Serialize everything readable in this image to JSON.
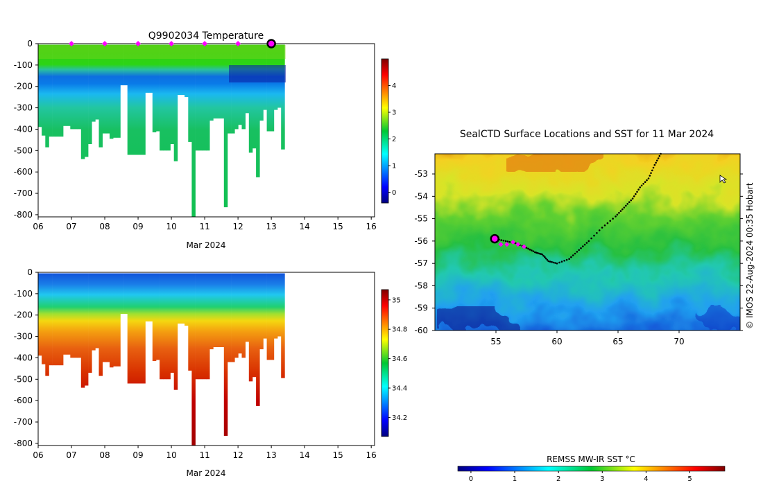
{
  "chart_data": [
    {
      "type": "heatmap",
      "title": "Q9902034  Temperature",
      "xlabel": "Mar 2024",
      "ylabel": "",
      "x_ticks": [
        "06",
        "07",
        "08",
        "09",
        "10",
        "11",
        "12",
        "13",
        "14",
        "15",
        "16"
      ],
      "xlim": [
        6,
        16.1
      ],
      "y_ticks": [
        "0",
        "-100",
        "-200",
        "-300",
        "-400",
        "-500",
        "-600",
        "-700",
        "-800"
      ],
      "ylim": [
        -810,
        0
      ],
      "colorbar": {
        "ticks": [
          "0",
          "1",
          "2",
          "3",
          "4"
        ],
        "range": [
          -0.4,
          5
        ],
        "colormap": "jet"
      },
      "surface_marker_days": [
        7,
        8,
        9,
        10,
        11,
        12
      ],
      "current_marker_day": 13,
      "profiles": {
        "start_day": 6.0,
        "end_day": 13.4,
        "max_depth_m": [
          390,
          430,
          485,
          435,
          435,
          435,
          435,
          385,
          385,
          400,
          400,
          400,
          540,
          530,
          470,
          365,
          355,
          485,
          420,
          420,
          445,
          440,
          440,
          195,
          195,
          520,
          520,
          520,
          520,
          520,
          230,
          230,
          415,
          410,
          500,
          500,
          500,
          470,
          550,
          240,
          240,
          250,
          460,
          810,
          500,
          500,
          500,
          500,
          360,
          350,
          350,
          350,
          765,
          420,
          420,
          400,
          380,
          400,
          325,
          510,
          490,
          625,
          360,
          310,
          410,
          410,
          310,
          300,
          495
        ]
      }
    },
    {
      "type": "heatmap",
      "title": "",
      "xlabel": "Mar 2024",
      "ylabel": "",
      "x_ticks": [
        "06",
        "07",
        "08",
        "09",
        "10",
        "11",
        "12",
        "13",
        "14",
        "15",
        "16"
      ],
      "xlim": [
        6,
        16.1
      ],
      "y_ticks": [
        "0",
        "-100",
        "-200",
        "-300",
        "-400",
        "-500",
        "-600",
        "-700",
        "-800"
      ],
      "ylim": [
        -810,
        0
      ],
      "colorbar": {
        "ticks": [
          "34.2",
          "34.4",
          "34.6",
          "34.8",
          "35"
        ],
        "range": [
          34.07,
          35.07
        ],
        "colormap": "jet"
      }
    },
    {
      "type": "heatmap",
      "title": "SealCTD Surface Locations and SST for 11 Mar 2024",
      "xlabel": "",
      "ylabel": "",
      "x_ticks": [
        "55",
        "60",
        "65",
        "70"
      ],
      "xlim": [
        50,
        75
      ],
      "y_ticks": [
        "-53",
        "-54",
        "-55",
        "-56",
        "-57",
        "-58",
        "-59",
        "-60"
      ],
      "ylim": [
        -60,
        -52.1
      ],
      "colorbar": {
        "label": "REMSS MW-IR SST °C",
        "ticks": [
          "0",
          "1",
          "2",
          "3",
          "4",
          "5"
        ],
        "range": [
          -0.3,
          5.8
        ],
        "colormap": "jet"
      },
      "track": [
        [
          68.5,
          -52.1
        ],
        [
          68.0,
          -52.6
        ],
        [
          67.5,
          -53.2
        ],
        [
          66.8,
          -53.6
        ],
        [
          66.2,
          -54.1
        ],
        [
          65.5,
          -54.5
        ],
        [
          64.8,
          -54.9
        ],
        [
          63.7,
          -55.4
        ],
        [
          62.6,
          -56.0
        ],
        [
          61.8,
          -56.4
        ],
        [
          61.0,
          -56.8
        ],
        [
          60.0,
          -57.0
        ],
        [
          59.3,
          -56.9
        ],
        [
          58.8,
          -56.6
        ],
        [
          58.2,
          -56.5
        ],
        [
          57.5,
          -56.3
        ],
        [
          56.6,
          -56.1
        ],
        [
          55.8,
          -56.0
        ],
        [
          54.9,
          -55.9
        ]
      ],
      "recent_positions": [
        [
          55.4,
          -56.15
        ],
        [
          55.9,
          -56.15
        ],
        [
          56.4,
          -56.05
        ],
        [
          56.8,
          -56.15
        ],
        [
          57.3,
          -56.25
        ]
      ],
      "current_position": [
        54.9,
        -55.9
      ],
      "side_text": "© IMOS 22-Aug-2024 00:35 Hobart"
    }
  ]
}
